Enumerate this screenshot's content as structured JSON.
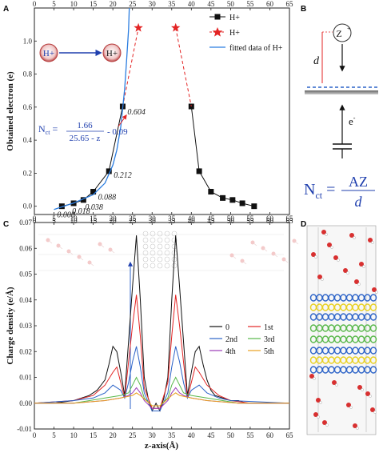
{
  "panels": {
    "A": "A",
    "B": "B",
    "C": "C",
    "D": "D"
  },
  "panel_a": {
    "ylabel": "Obtained electron (e)",
    "x_ticks": [
      "0",
      "5",
      "10",
      "15",
      "20",
      "25",
      "30",
      "35",
      "40",
      "45",
      "50",
      "55",
      "60",
      "65"
    ],
    "y_ticks": [
      "0.0",
      "0.2",
      "0.4",
      "0.6",
      "0.8",
      "1.0"
    ],
    "legend": [
      "H+",
      "H+",
      "fitted data of H+"
    ],
    "ion_from": "H+",
    "ion_to": "H+",
    "equation": {
      "lhs": "N",
      "lhs_sub": "ct",
      "num": "1.66",
      "den": "25.65 - z",
      "tail": "- 0.09"
    },
    "point_labels": [
      "0.000",
      "0.018",
      "0.038",
      "0.088",
      "0.212",
      "0.604"
    ]
  },
  "panel_b": {
    "ion": "Z",
    "ion_charge": "+",
    "distance": "d",
    "electron": "e",
    "electron_charge": "-",
    "equation": {
      "lhs": "N",
      "lhs_sub": "ct",
      "num": "AZ",
      "den": "d"
    }
  },
  "panel_c": {
    "xlabel": "z-axis(Å)",
    "ylabel": "Charge density (e/Å)",
    "x_ticks": [
      "0",
      "5",
      "10",
      "15",
      "20",
      "25",
      "30",
      "35",
      "40",
      "45",
      "50",
      "55",
      "60",
      "65"
    ],
    "y_ticks": [
      "-0.01",
      "0.00",
      "0.01",
      "0.02",
      "0.03",
      "0.04",
      "0.05",
      "0.06",
      "0.07"
    ],
    "legend": [
      "0",
      "1st",
      "2nd",
      "3rd",
      "4th",
      "5th"
    ]
  },
  "colors": {
    "black": "#111111",
    "red": "#e32424",
    "blue": "#2c63c8",
    "purple": "#9b3bb8",
    "green": "#58b84a",
    "orange": "#e8a020",
    "fit": "#2b7de0",
    "accent_blue": "#1f3fae"
  },
  "chart_data": [
    {
      "type": "line",
      "panel": "A",
      "ylabel": "Obtained electron (e)",
      "xlim": [
        0,
        65
      ],
      "ylim": [
        -0.05,
        1.2
      ],
      "series": [
        {
          "name": "H+",
          "marker": "square",
          "color": "#111111",
          "x": [
            7,
            10,
            12.5,
            15,
            19,
            22.5
          ],
          "y": [
            0.0,
            0.018,
            0.038,
            0.088,
            0.212,
            0.604
          ]
        },
        {
          "name": "H+",
          "marker": "square",
          "color": "#111111",
          "x": [
            40,
            42,
            45,
            48,
            50.5,
            53,
            56
          ],
          "y": [
            0.604,
            0.212,
            0.088,
            0.05,
            0.038,
            0.018,
            0.0
          ]
        },
        {
          "name": "H+",
          "marker": "star",
          "color": "#e32424",
          "dashed": true,
          "x": [
            22.5,
            26.5
          ],
          "y": [
            0.604,
            1.08
          ]
        },
        {
          "name": "H+",
          "marker": "star",
          "color": "#e32424",
          "dashed": true,
          "x": [
            36,
            40
          ],
          "y": [
            1.08,
            0.604
          ]
        },
        {
          "name": "fitted data of H+",
          "color": "#2b7de0",
          "x": [
            5,
            10,
            15,
            18,
            20,
            21,
            22,
            22.5,
            23,
            23.5,
            24,
            24.5
          ],
          "y": [
            -0.02,
            0.02,
            0.07,
            0.14,
            0.25,
            0.34,
            0.48,
            0.59,
            0.71,
            0.88,
            1.07,
            1.42
          ]
        }
      ],
      "point_labels": [
        "0.000",
        "0.018",
        "0.038",
        "0.088",
        "0.212",
        "0.604"
      ]
    },
    {
      "type": "line",
      "panel": "C",
      "xlabel": "z-axis(Å)",
      "ylabel": "Charge density (e/Å)",
      "xlim": [
        0,
        65
      ],
      "ylim": [
        -0.01,
        0.07
      ],
      "series": [
        {
          "name": "0",
          "color": "#111111",
          "x": [
            0,
            5,
            10,
            12,
            14,
            16,
            18,
            19,
            20,
            21,
            22,
            23,
            24,
            25,
            26,
            27,
            28,
            29,
            30,
            31,
            32,
            33,
            34,
            35,
            36,
            37,
            38,
            39,
            40,
            41,
            42,
            43,
            44,
            45,
            46,
            48,
            50,
            52,
            54,
            60,
            65
          ],
          "y": [
            0.0,
            0.0,
            0.001,
            0.002,
            0.003,
            0.005,
            0.009,
            0.015,
            0.022,
            0.02,
            0.012,
            0.003,
            0.024,
            0.045,
            0.065,
            0.04,
            0.01,
            0.002,
            -0.003,
            0.0,
            -0.003,
            0.002,
            0.01,
            0.04,
            0.065,
            0.045,
            0.024,
            0.003,
            0.012,
            0.02,
            0.022,
            0.015,
            0.009,
            0.005,
            0.003,
            0.002,
            0.001,
            0.001,
            0.0,
            0.0,
            0.0
          ]
        },
        {
          "name": "1st",
          "color": "#e32424",
          "x": [
            0,
            10,
            15,
            18,
            20,
            21,
            22,
            23,
            24,
            25,
            26,
            27,
            28,
            30,
            32,
            34,
            35,
            36,
            37,
            38,
            39,
            40,
            41,
            42,
            44,
            47,
            50,
            55,
            65
          ],
          "y": [
            0.0,
            0.001,
            0.003,
            0.007,
            0.012,
            0.014,
            0.008,
            0.002,
            0.016,
            0.03,
            0.042,
            0.026,
            0.006,
            -0.002,
            -0.002,
            0.008,
            0.026,
            0.042,
            0.03,
            0.016,
            0.002,
            0.008,
            0.014,
            0.012,
            0.007,
            0.003,
            0.001,
            0.0,
            0.0
          ]
        },
        {
          "name": "2nd",
          "color": "#2c63c8",
          "x": [
            0,
            10,
            15,
            18,
            20,
            22,
            23,
            24,
            25,
            26,
            27,
            28,
            30,
            32,
            34,
            35,
            36,
            37,
            38,
            39,
            40,
            42,
            44,
            47,
            50,
            65
          ],
          "y": [
            0.0,
            0.001,
            0.002,
            0.004,
            0.007,
            0.005,
            0.002,
            0.008,
            0.016,
            0.022,
            0.014,
            0.004,
            -0.003,
            -0.003,
            0.004,
            0.014,
            0.022,
            0.016,
            0.008,
            0.002,
            0.005,
            0.007,
            0.004,
            0.002,
            0.001,
            0.0
          ]
        },
        {
          "name": "3rd",
          "color": "#58b84a",
          "x": [
            0,
            10,
            18,
            22,
            24,
            25,
            26,
            27,
            28,
            30,
            32,
            34,
            35,
            36,
            37,
            38,
            40,
            44,
            52,
            65
          ],
          "y": [
            0.0,
            0.0,
            0.002,
            0.003,
            0.004,
            0.007,
            0.01,
            0.007,
            0.002,
            -0.001,
            -0.001,
            0.002,
            0.007,
            0.01,
            0.007,
            0.004,
            0.003,
            0.002,
            0.0,
            0.0
          ]
        },
        {
          "name": "4th",
          "color": "#9b3bb8",
          "x": [
            0,
            10,
            18,
            22,
            24,
            25,
            26,
            27,
            28,
            30,
            32,
            34,
            35,
            36,
            37,
            38,
            40,
            44,
            52,
            65
          ],
          "y": [
            0.0,
            0.0,
            0.001,
            0.002,
            0.003,
            0.004,
            0.006,
            0.004,
            0.001,
            -0.002,
            -0.002,
            0.001,
            0.004,
            0.006,
            0.004,
            0.003,
            0.002,
            0.001,
            0.0,
            0.0
          ]
        },
        {
          "name": "5th",
          "color": "#e8a020",
          "x": [
            0,
            10,
            18,
            22,
            25,
            26,
            27,
            30,
            32,
            35,
            36,
            37,
            40,
            44,
            52,
            65
          ],
          "y": [
            0.0,
            0.0,
            0.001,
            0.002,
            0.003,
            0.004,
            0.003,
            -0.001,
            -0.001,
            0.003,
            0.004,
            0.003,
            0.002,
            0.001,
            0.0,
            0.0
          ]
        }
      ]
    }
  ]
}
